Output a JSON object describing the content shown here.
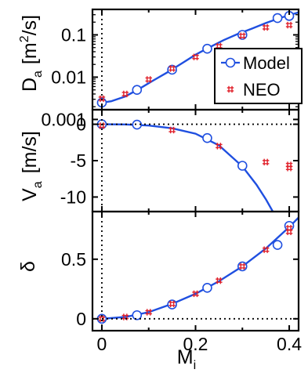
{
  "chart_data": [
    {
      "type": "scatter",
      "ylabel_main": "D",
      "ylabel_sub": "a",
      "ylabel_unit": "[m",
      "ylabel_unit_sup": "2",
      "ylabel_unit_end": "/s]",
      "yscale": "log",
      "ylim": [
        0.0017,
        0.4
      ],
      "xlim": [
        -0.02,
        0.42
      ],
      "yticks": [
        0.001,
        0.01,
        0.1
      ],
      "yticklabels": [
        "0.001",
        "0.01",
        "0.1"
      ],
      "legend": {
        "position": "right",
        "entries": [
          {
            "label": "Model",
            "marker": "circle"
          },
          {
            "label": "NEO",
            "marker": "hash"
          }
        ]
      },
      "series": [
        {
          "name": "Model",
          "kind": "curve",
          "x": [
            0,
            0.02,
            0.05,
            0.08,
            0.11,
            0.14,
            0.17,
            0.2,
            0.23,
            0.26,
            0.29,
            0.32,
            0.35,
            0.38,
            0.42
          ],
          "y": [
            0.0025,
            0.0027,
            0.0035,
            0.0053,
            0.0084,
            0.013,
            0.021,
            0.034,
            0.051,
            0.075,
            0.105,
            0.14,
            0.19,
            0.25,
            0.34
          ]
        },
        {
          "name": "Model",
          "kind": "points",
          "x": [
            0,
            0.075,
            0.15,
            0.225,
            0.3,
            0.375,
            0.4
          ],
          "y": [
            0.0025,
            0.005,
            0.015,
            0.047,
            0.1,
            0.25,
            0.28
          ]
        },
        {
          "name": "NEO",
          "kind": "points",
          "x": [
            0,
            0.05,
            0.1,
            0.15,
            0.2,
            0.25,
            0.3,
            0.35,
            0.4
          ],
          "y": [
            0.0031,
            0.004,
            0.0088,
            0.016,
            0.03,
            0.054,
            0.095,
            0.15,
            0.17
          ]
        }
      ]
    },
    {
      "type": "scatter",
      "ylabel_main": "V",
      "ylabel_sub": "a",
      "ylabel_unit": "[m/s]",
      "ylim": [
        -12,
        2
      ],
      "xlim": [
        -0.02,
        0.42
      ],
      "yticks": [
        0,
        -5,
        -10
      ],
      "yticklabels": [
        "0",
        "-5",
        "-10"
      ],
      "series": [
        {
          "name": "Model",
          "kind": "curve",
          "x": [
            0,
            0.05,
            0.1,
            0.15,
            0.2,
            0.25,
            0.3,
            0.33,
            0.35,
            0.365
          ],
          "y": [
            0,
            -0.03,
            -0.18,
            -0.55,
            -1.3,
            -2.9,
            -5.8,
            -8.3,
            -10.3,
            -12
          ]
        },
        {
          "name": "Model",
          "kind": "points",
          "x": [
            0,
            0.075,
            0.225,
            0.3
          ],
          "y": [
            0,
            -0.05,
            -1.9,
            -5.7
          ]
        },
        {
          "name": "NEO",
          "kind": "points",
          "x": [
            0,
            0.15,
            0.25,
            0.35,
            0.4,
            0.4
          ],
          "y": [
            -0.2,
            -0.8,
            -3.0,
            -5.2,
            -5.6,
            -6.0
          ]
        }
      ]
    },
    {
      "type": "scatter",
      "ylabel_main": "δ",
      "xlabel_main": "M",
      "xlabel_sub": "i",
      "ylim": [
        -0.1,
        0.9
      ],
      "xlim": [
        -0.02,
        0.42
      ],
      "yticks": [
        0,
        0.5
      ],
      "yticklabels": [
        "0",
        "0.5"
      ],
      "xticks": [
        0,
        0.2,
        0.4
      ],
      "xticklabels": [
        "0",
        "0.2",
        "0.4"
      ],
      "series": [
        {
          "name": "Model",
          "kind": "curve",
          "x": [
            0,
            0.05,
            0.1,
            0.15,
            0.2,
            0.25,
            0.3,
            0.35,
            0.4,
            0.42
          ],
          "y": [
            0,
            0.015,
            0.055,
            0.125,
            0.21,
            0.315,
            0.44,
            0.59,
            0.77,
            0.85
          ]
        },
        {
          "name": "Model",
          "kind": "points",
          "x": [
            0,
            0.075,
            0.15,
            0.225,
            0.3,
            0.375,
            0.4
          ],
          "y": [
            0,
            0.03,
            0.12,
            0.26,
            0.44,
            0.62,
            0.78
          ]
        },
        {
          "name": "NEO",
          "kind": "points",
          "x": [
            0,
            0.05,
            0.1,
            0.15,
            0.2,
            0.25,
            0.3,
            0.35,
            0.4,
            0.4
          ],
          "y": [
            0,
            0.015,
            0.055,
            0.125,
            0.21,
            0.32,
            0.44,
            0.58,
            0.73,
            0.76
          ]
        }
      ]
    }
  ],
  "colors": {
    "model": "#1f4fe0",
    "neo": "#e0202a",
    "axis": "#000000"
  }
}
